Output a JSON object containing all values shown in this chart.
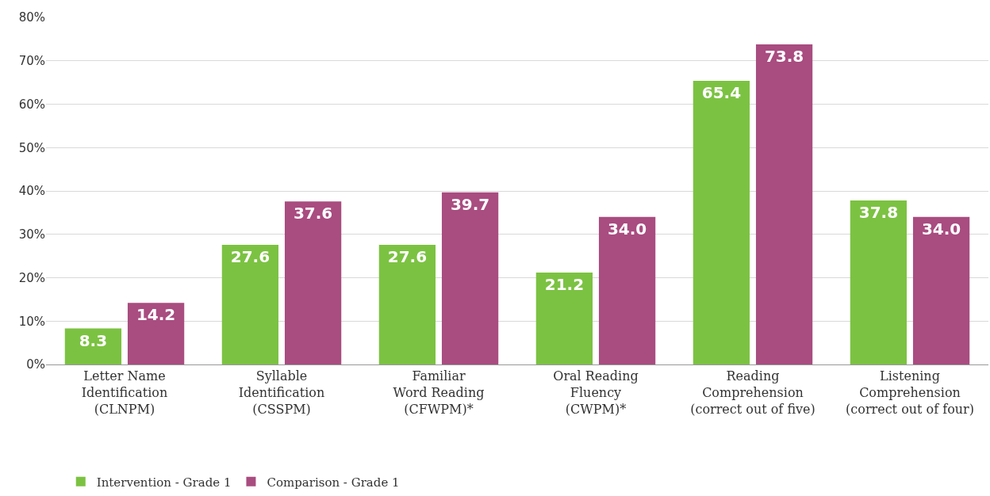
{
  "chart_data": {
    "type": "bar",
    "categories": [
      "Letter Name\nIdentification\n(CLNPM)",
      "Syllable\nIdentification\n(CSSPM)",
      "Familiar\nWord Reading\n(CFWPM)*",
      "Oral Reading\nFluency\n(CWPM)*",
      "Reading\nComprehension\n(correct out of five)",
      "Listening\nComprehension\n(correct out of four)"
    ],
    "series": [
      {
        "name": "Intervention - Grade 1",
        "color": "#7cc242",
        "values": [
          8.3,
          27.6,
          27.6,
          21.2,
          65.4,
          37.8
        ],
        "value_labels": [
          "8.3",
          "27.6",
          "27.6",
          "21.2",
          "65.4",
          "37.8"
        ]
      },
      {
        "name": "Comparison - Grade 1",
        "color": "#a94c80",
        "values": [
          14.2,
          37.6,
          39.7,
          34.0,
          73.8,
          34.0
        ],
        "value_labels": [
          "14.2",
          "37.6",
          "39.7",
          "34.0",
          "73.8",
          "34.0"
        ]
      }
    ],
    "ylim": [
      0,
      80
    ],
    "yticks": [
      {
        "value": 0,
        "label": "0%"
      },
      {
        "value": 10,
        "label": "10%"
      },
      {
        "value": 20,
        "label": "20%"
      },
      {
        "value": 30,
        "label": "30%"
      },
      {
        "value": 40,
        "label": "40%"
      },
      {
        "value": 50,
        "label": "50%"
      },
      {
        "value": 60,
        "label": "60%"
      },
      {
        "value": 70,
        "label": "70%"
      },
      {
        "value": 80,
        "label": "80%"
      }
    ],
    "grid": "y",
    "legend": "bottom left"
  }
}
